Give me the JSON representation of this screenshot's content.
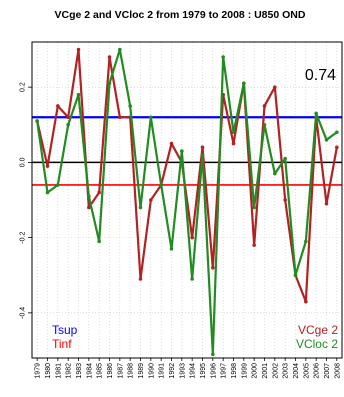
{
  "chart_data": {
    "type": "line",
    "title": "VCge 2 and VCloc 2 from 1979 to 2008 : U850 OND",
    "correlation_label": "0.74",
    "x": [
      "1979",
      "1980",
      "1981",
      "1982",
      "1983",
      "1984",
      "1985",
      "1986",
      "1987",
      "1988",
      "1989",
      "1990",
      "1991",
      "1992",
      "1993",
      "1994",
      "1995",
      "1996",
      "1997",
      "1998",
      "1999",
      "2000",
      "2001",
      "2002",
      "2003",
      "2004",
      "2005",
      "2006",
      "2007",
      "2008"
    ],
    "y_ticks": [
      "0.2",
      "0.0",
      "-0.2",
      "-0.4"
    ],
    "y_tick_values": [
      0.2,
      0.0,
      -0.2,
      -0.4
    ],
    "ylim": [
      -0.52,
      0.32
    ],
    "grid": true,
    "series": [
      {
        "name": "VCge 2",
        "color": "#b22222",
        "values": [
          0.11,
          -0.01,
          0.15,
          0.12,
          0.3,
          -0.12,
          -0.08,
          0.28,
          0.12,
          0.12,
          -0.31,
          -0.1,
          -0.06,
          0.05,
          0.0,
          -0.2,
          0.04,
          -0.28,
          0.18,
          0.05,
          0.21,
          -0.22,
          0.15,
          0.2,
          -0.1,
          -0.3,
          -0.37,
          0.12,
          -0.11,
          0.04
        ]
      },
      {
        "name": "VCloc 2",
        "color": "#228b22",
        "values": [
          0.11,
          -0.08,
          -0.06,
          0.1,
          0.18,
          -0.09,
          -0.21,
          0.21,
          0.3,
          0.15,
          -0.12,
          0.12,
          -0.06,
          -0.23,
          0.03,
          -0.31,
          0.02,
          -0.51,
          0.28,
          0.08,
          0.21,
          -0.12,
          0.1,
          -0.03,
          0.01,
          -0.3,
          -0.21,
          0.13,
          0.06,
          0.08
        ]
      }
    ],
    "reference_lines": [
      {
        "name": "Tsup",
        "value": 0.12,
        "color": "#0000ff"
      },
      {
        "name": "Tinf",
        "value": -0.06,
        "color": "#ff0000"
      },
      {
        "name": "zero",
        "value": 0.0,
        "color": "#000000"
      }
    ],
    "legend_left": [
      {
        "label": "Tsup",
        "color": "#0000ff"
      },
      {
        "label": "Tinf",
        "color": "#ff0000"
      }
    ],
    "legend_right": [
      {
        "label": "VCge 2",
        "color": "#b22222"
      },
      {
        "label": "VCloc 2",
        "color": "#228b22"
      }
    ]
  }
}
